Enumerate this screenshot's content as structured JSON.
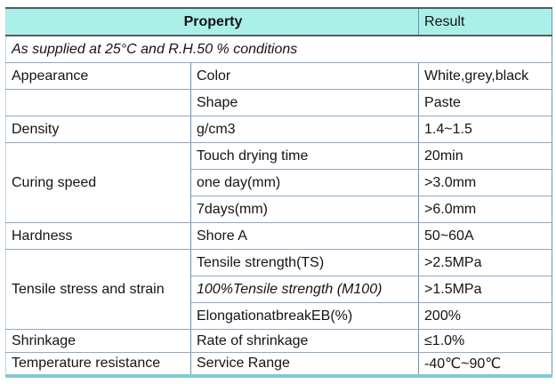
{
  "colors": {
    "header_bg": "#aaf0e9",
    "grid_line": "#8fa9c2",
    "column_line": "#5e97c4",
    "dark_border": "#4d5c63",
    "bottom_border": "#82c9d3"
  },
  "header": {
    "property": "Property",
    "result": "Result"
  },
  "condition_note": "As supplied at 25°C and R.H.50 % conditions",
  "rows": [
    {
      "property": "Appearance",
      "sub": "Color",
      "result": "White,grey,black"
    },
    {
      "property": "",
      "sub": "Shape",
      "result": "Paste"
    },
    {
      "property": "Density",
      "sub": "g/cm3",
      "result": "1.4~1.5"
    },
    {
      "property": "Curing speed",
      "sub": "Touch drying time",
      "result": "20min"
    },
    {
      "sub": "one day(mm)",
      "result": ">3.0mm"
    },
    {
      "sub": "7days(mm)",
      "result": ">6.0mm"
    },
    {
      "property": "Hardness",
      "sub": "Shore A",
      "result": "50~60A"
    },
    {
      "property": "Tensile stress and strain",
      "sub": "Tensile strength(TS)",
      "result": ">2.5MPa"
    },
    {
      "sub": "100%Tensile strength (M100)",
      "result": ">1.5MPa"
    },
    {
      "sub": "ElongationatbreakEB(%)",
      "result": "200%"
    },
    {
      "property": "Shrinkage",
      "sub": "Rate of shrinkage",
      "result": "≤1.0%"
    },
    {
      "property": "Temperature resistance",
      "sub": "Service Range",
      "result": "-40℃~90℃"
    }
  ]
}
